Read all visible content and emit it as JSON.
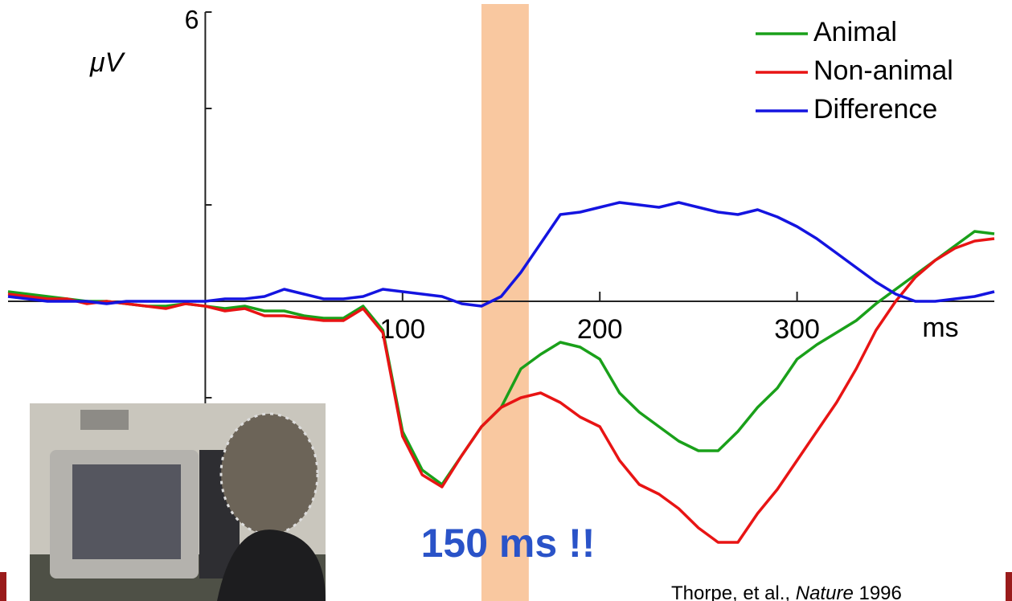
{
  "chart_data": {
    "type": "line",
    "y_label": "μV",
    "x_unit_label": "ms",
    "annotation": "150 ms !!",
    "citation": {
      "authors": "Thorpe, et al.,",
      "journal": "Nature",
      "year": "1996"
    },
    "x": [
      -100,
      -90,
      -80,
      -70,
      -60,
      -50,
      -40,
      -30,
      -20,
      -10,
      0,
      10,
      20,
      30,
      40,
      50,
      60,
      70,
      80,
      90,
      100,
      110,
      120,
      130,
      140,
      150,
      160,
      170,
      180,
      190,
      200,
      210,
      220,
      230,
      240,
      250,
      260,
      270,
      280,
      290,
      300,
      310,
      320,
      330,
      340,
      350,
      360,
      370,
      380,
      390,
      400
    ],
    "series": [
      {
        "name": "Animal",
        "color": "#1aa01a",
        "values": [
          0.2,
          0.15,
          0.1,
          0.05,
          0.0,
          0.0,
          -0.05,
          -0.1,
          -0.1,
          -0.05,
          -0.1,
          -0.15,
          -0.1,
          -0.2,
          -0.2,
          -0.3,
          -0.35,
          -0.35,
          -0.1,
          -0.6,
          -2.7,
          -3.5,
          -3.8,
          -3.2,
          -2.6,
          -2.2,
          -1.4,
          -1.1,
          -0.85,
          -0.95,
          -1.2,
          -1.9,
          -2.3,
          -2.6,
          -2.9,
          -3.1,
          -3.1,
          -2.7,
          -2.2,
          -1.8,
          -1.2,
          -0.9,
          -0.65,
          -0.4,
          -0.05,
          0.25,
          0.55,
          0.85,
          1.15,
          1.45,
          1.4
        ]
      },
      {
        "name": "Non-animal",
        "color": "#e81414",
        "values": [
          0.15,
          0.1,
          0.05,
          0.05,
          -0.05,
          0.0,
          -0.05,
          -0.1,
          -0.15,
          -0.05,
          -0.1,
          -0.2,
          -0.15,
          -0.3,
          -0.3,
          -0.35,
          -0.4,
          -0.4,
          -0.15,
          -0.65,
          -2.8,
          -3.6,
          -3.85,
          -3.2,
          -2.6,
          -2.2,
          -2.0,
          -1.9,
          -2.1,
          -2.4,
          -2.6,
          -3.3,
          -3.8,
          -4.0,
          -4.3,
          -4.7,
          -5.0,
          -5.0,
          -4.4,
          -3.9,
          -3.3,
          -2.7,
          -2.1,
          -1.4,
          -0.6,
          0.0,
          0.5,
          0.85,
          1.1,
          1.25,
          1.3
        ]
      },
      {
        "name": "Difference",
        "color": "#1414e0",
        "values": [
          0.1,
          0.05,
          0.0,
          0.0,
          0.0,
          -0.05,
          0.0,
          0.0,
          0.0,
          0.0,
          0.0,
          0.05,
          0.05,
          0.1,
          0.25,
          0.15,
          0.05,
          0.05,
          0.1,
          0.25,
          0.2,
          0.15,
          0.1,
          -0.05,
          -0.1,
          0.1,
          0.6,
          1.2,
          1.8,
          1.85,
          1.95,
          2.05,
          2.0,
          1.95,
          2.05,
          1.95,
          1.85,
          1.8,
          1.9,
          1.75,
          1.55,
          1.3,
          1.0,
          0.7,
          0.4,
          0.15,
          0.0,
          0.0,
          0.05,
          0.1,
          0.2
        ]
      }
    ],
    "highlight_xrange": [
      140,
      164
    ],
    "highlight_color": "#f9c8a0",
    "xlim": [
      -100,
      400
    ],
    "ylim": [
      -6,
      6
    ],
    "xticks": [
      100,
      200,
      300
    ],
    "yticks": [
      6
    ],
    "y_minor_ticks": [
      -2,
      2,
      4
    ]
  }
}
